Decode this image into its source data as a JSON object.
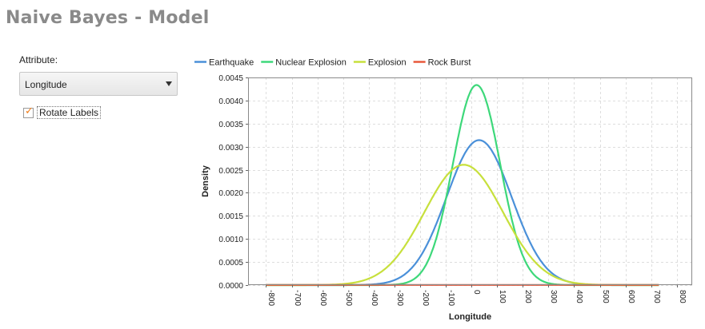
{
  "page": {
    "title": "Naive Bayes - Model"
  },
  "controls": {
    "attribute_label": "Attribute:",
    "attribute_value": "Longitude",
    "rotate_labels": {
      "label": "Rotate Labels",
      "checked": true
    }
  },
  "chart_data": {
    "type": "line",
    "title": "",
    "xlabel": "Longitude",
    "ylabel": "Density",
    "xlim": [
      -870,
      860
    ],
    "ylim": [
      0,
      0.0045
    ],
    "xticks": [
      -800,
      -700,
      -600,
      -500,
      -400,
      -300,
      -200,
      -100,
      0,
      100,
      200,
      300,
      400,
      500,
      600,
      700,
      800
    ],
    "yticks": [
      "0.0000",
      "0.0005",
      "0.0010",
      "0.0015",
      "0.0020",
      "0.0025",
      "0.0030",
      "0.0035",
      "0.0040",
      "0.0045"
    ],
    "x_tick_rotation": "vertical",
    "grid": true,
    "legend": "top",
    "series": [
      {
        "name": "Earthquake",
        "color": "#4a90d9",
        "distribution": "normal",
        "mean": 30,
        "std": 127,
        "x_range": [
          -800,
          730
        ]
      },
      {
        "name": "Nuclear Explosion",
        "color": "#3dd87a",
        "distribution": "normal",
        "mean": 20,
        "std": 92,
        "x_range": [
          -800,
          730
        ]
      },
      {
        "name": "Explosion",
        "color": "#c7e03c",
        "distribution": "normal",
        "mean": -30,
        "std": 153,
        "x_range": [
          -800,
          730
        ]
      },
      {
        "name": "Rock Burst",
        "color": "#e8583a",
        "distribution": "normal",
        "mean": 0,
        "std": 120000,
        "x_range": [
          -800,
          730
        ]
      }
    ]
  }
}
